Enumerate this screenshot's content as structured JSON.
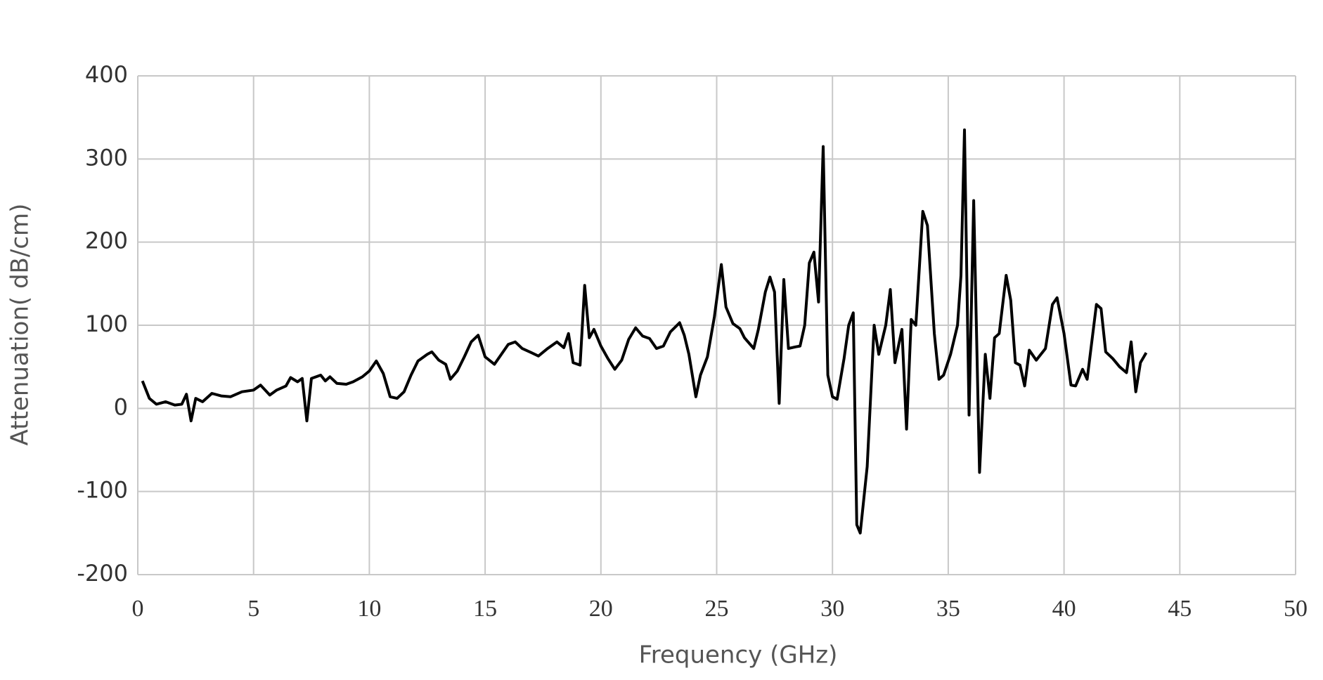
{
  "chart_data": {
    "type": "line",
    "x_label": "Frequency (GHz)",
    "y_label": "Attenuation( dB/cm)",
    "xlim": [
      0,
      50
    ],
    "xticks": [
      0,
      5,
      10,
      15,
      20,
      25,
      30,
      35,
      40,
      45,
      50
    ],
    "ylim": [
      -200,
      400
    ],
    "yticks": [
      -200,
      -100,
      0,
      100,
      200,
      300,
      400
    ],
    "grid": true,
    "x": [
      0.2,
      0.5,
      0.8,
      1.2,
      1.6,
      1.9,
      2.1,
      2.3,
      2.5,
      2.8,
      3.2,
      3.6,
      4.0,
      4.5,
      5.0,
      5.3,
      5.7,
      6.0,
      6.4,
      6.6,
      6.9,
      7.1,
      7.3,
      7.5,
      7.9,
      8.1,
      8.3,
      8.6,
      9.0,
      9.3,
      9.7,
      10.0,
      10.3,
      10.6,
      10.9,
      11.2,
      11.5,
      11.8,
      12.1,
      12.5,
      12.7,
      13.0,
      13.3,
      13.5,
      13.8,
      14.1,
      14.4,
      14.7,
      15.0,
      15.4,
      15.7,
      16.0,
      16.3,
      16.6,
      17.0,
      17.3,
      17.7,
      18.1,
      18.4,
      18.6,
      18.8,
      19.1,
      19.3,
      19.5,
      19.7,
      20.0,
      20.3,
      20.6,
      20.9,
      21.2,
      21.5,
      21.8,
      22.1,
      22.4,
      22.7,
      23.0,
      23.4,
      23.6,
      23.8,
      24.1,
      24.3,
      24.6,
      24.9,
      25.2,
      25.4,
      25.7,
      26.0,
      26.2,
      26.6,
      26.8,
      27.1,
      27.3,
      27.5,
      27.7,
      27.9,
      28.1,
      28.4,
      28.6,
      28.8,
      29.0,
      29.2,
      29.4,
      29.6,
      29.8,
      30.0,
      30.2,
      30.5,
      30.7,
      30.9,
      31.05,
      31.2,
      31.5,
      31.8,
      32.0,
      32.3,
      32.5,
      32.7,
      33.0,
      33.2,
      33.4,
      33.6,
      33.9,
      34.1,
      34.4,
      34.6,
      34.8,
      35.1,
      35.4,
      35.55,
      35.7,
      35.9,
      36.1,
      36.35,
      36.6,
      36.8,
      37.0,
      37.2,
      37.5,
      37.7,
      37.9,
      38.1,
      38.3,
      38.5,
      38.8,
      39.2,
      39.5,
      39.7,
      40.0,
      40.3,
      40.5,
      40.8,
      41.0,
      41.4,
      41.6,
      41.8,
      42.1,
      42.4,
      42.7,
      42.9,
      43.1,
      43.3,
      43.55
    ],
    "series": [
      {
        "color": "#000000",
        "values": [
          33,
          12,
          5,
          8,
          4,
          5,
          17,
          -15,
          12,
          8,
          18,
          15,
          14,
          20,
          22,
          28,
          16,
          22,
          27,
          37,
          32,
          36,
          -15,
          36,
          40,
          33,
          38,
          30,
          29,
          32,
          38,
          45,
          57,
          42,
          14,
          12,
          20,
          40,
          57,
          65,
          68,
          58,
          53,
          35,
          45,
          62,
          80,
          88,
          62,
          53,
          65,
          77,
          80,
          72,
          67,
          63,
          72,
          80,
          73,
          90,
          55,
          52,
          148,
          85,
          95,
          75,
          60,
          47,
          58,
          83,
          97,
          87,
          84,
          72,
          75,
          92,
          103,
          88,
          65,
          14,
          40,
          62,
          110,
          173,
          122,
          102,
          96,
          85,
          72,
          95,
          140,
          158,
          140,
          6,
          155,
          72,
          74,
          75,
          100,
          175,
          188,
          128,
          315,
          40,
          14,
          11,
          60,
          100,
          115,
          -140,
          -150,
          -70,
          100,
          65,
          100,
          143,
          55,
          95,
          -25,
          107,
          100,
          237,
          220,
          90,
          35,
          40,
          65,
          100,
          160,
          335,
          -8,
          250,
          -77,
          65,
          12,
          85,
          90,
          160,
          130,
          55,
          52,
          27,
          70,
          58,
          72,
          125,
          133,
          90,
          28,
          27,
          47,
          35,
          125,
          120,
          68,
          60,
          50,
          43,
          80,
          20,
          55,
          67
        ]
      }
    ]
  }
}
